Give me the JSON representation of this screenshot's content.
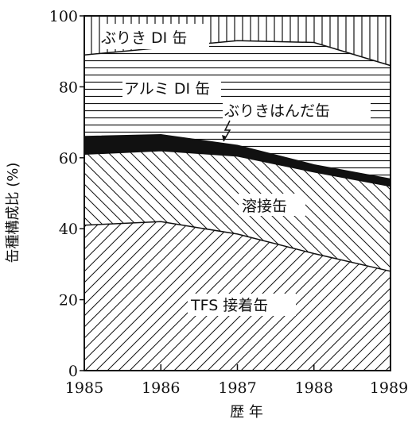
{
  "chart_data": {
    "type": "area",
    "stacked": true,
    "title": "",
    "xlabel": "歴 年",
    "ylabel": "缶種構成比 (%)",
    "x": [
      1985,
      1986,
      1987,
      1988,
      1989
    ],
    "x_tick_labels": [
      "1985",
      "1986",
      "1987",
      "1988",
      "1989"
    ],
    "ylim": [
      0,
      100
    ],
    "y_ticks": [
      0,
      20,
      40,
      60,
      80,
      100
    ],
    "y_tick_labels": [
      "0",
      "20",
      "40",
      "60",
      "80",
      "100"
    ],
    "grid": false,
    "legend": "none (series labelled inside the areas)",
    "series": [
      {
        "name": "TFS 接着缶",
        "pattern": "diagonal-hatch",
        "cumulative_top": [
          41,
          42,
          38.5,
          33,
          28
        ]
      },
      {
        "name": "溶接缶",
        "pattern": "back-diagonal-hatch",
        "cumulative_top": [
          61,
          62,
          60.5,
          56,
          52
        ]
      },
      {
        "name": "ぶりきはんだ缶",
        "pattern": "solid-black",
        "cumulative_top": [
          66,
          66.5,
          63.5,
          58,
          54
        ]
      },
      {
        "name": "アルミ DI 缶",
        "pattern": "horizontal-hatch",
        "cumulative_top": [
          89,
          91,
          93,
          92.5,
          86
        ]
      },
      {
        "name": "ぶりき DI 缶",
        "pattern": "vertical-hatch",
        "cumulative_top": [
          100,
          100,
          100,
          100,
          100
        ]
      }
    ]
  }
}
